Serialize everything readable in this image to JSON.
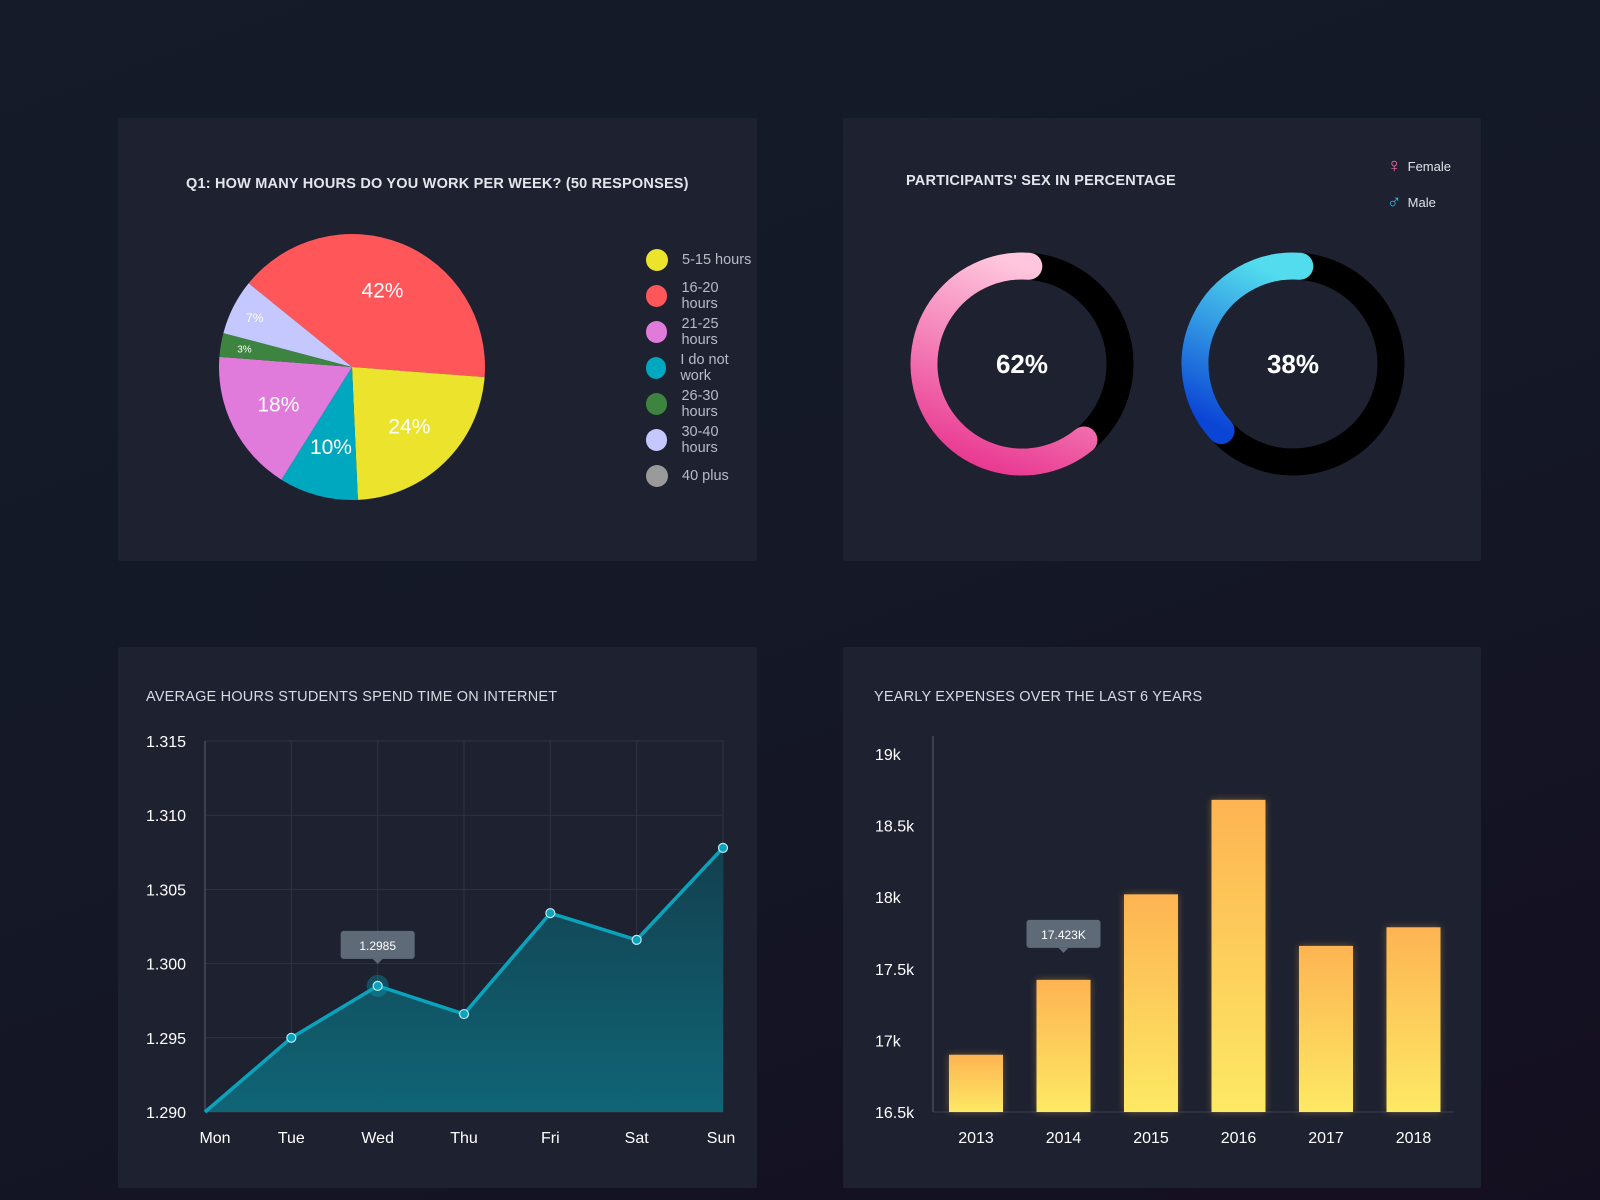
{
  "colors": {
    "panel": "#1d2130",
    "female_start": "#ffc6dd",
    "female_end": "#e93a92",
    "male_start": "#52dcee",
    "male_end": "#0b45d6",
    "line": "#0aa3bc",
    "bar_top": "#fdb452",
    "bar_bottom": "#fde964"
  },
  "chart_data": [
    {
      "type": "pie",
      "title": "Q1:  HOW MANY HOURS DO YOU WORK PER WEEK? (50 RESPONSES)",
      "slices": [
        {
          "label": "16-20 hours",
          "value": 42,
          "text": "42%",
          "color": "#ff565a"
        },
        {
          "label": "5-15 hours",
          "value": 24,
          "text": "24%",
          "color": "#ece42c"
        },
        {
          "label": "I do not work",
          "value": 10,
          "text": "10%",
          "color": "#00a8bf"
        },
        {
          "label": "21-25 hours",
          "value": 18,
          "text": "18%",
          "color": "#e07bdc"
        },
        {
          "label": "26-30 hours",
          "value": 3,
          "text": "3%",
          "color": "#3c8440"
        },
        {
          "label": "30-40 hours",
          "value": 7,
          "text": "7%",
          "color": "#c4c8ff"
        },
        {
          "label": "40 plus",
          "value": 0,
          "text": "",
          "color": "#9a9a9a"
        }
      ],
      "legend": [
        {
          "label": "5-15 hours",
          "color": "#ece42c"
        },
        {
          "label": "16-20 hours",
          "color": "#ff565a"
        },
        {
          "label": "21-25 hours",
          "color": "#e07bdc"
        },
        {
          "label": "I do not work",
          "color": "#00a8bf"
        },
        {
          "label": "26-30 hours",
          "color": "#3c8440"
        },
        {
          "label": "30-40 hours",
          "color": "#c4c8ff"
        },
        {
          "label": "40 plus",
          "color": "#9a9a9a"
        }
      ],
      "legend_position": "right"
    },
    {
      "type": "donut",
      "title": "PARTICIPANTS' SEX IN PERCENTAGE",
      "series": [
        {
          "name": "Female",
          "value": 62,
          "text": "62%",
          "icon": "female-icon"
        },
        {
          "name": "Male",
          "value": 38,
          "text": "38%",
          "icon": "male-icon"
        }
      ],
      "legend_position": "top-right"
    },
    {
      "type": "area",
      "title": "AVERAGE HOURS STUDENTS SPEND TIME ON INTERNET",
      "categories": [
        "Mon",
        "Tue",
        "Wed",
        "Thu",
        "Fri",
        "Sat",
        "Sun"
      ],
      "values": [
        1.29,
        1.295,
        1.2985,
        1.2966,
        1.3034,
        1.3016,
        1.3078
      ],
      "yticks": [
        "1.290",
        "1.295",
        "1.300",
        "1.305",
        "1.310",
        "1.315"
      ],
      "ylim": [
        1.29,
        1.315
      ],
      "grid": true,
      "tooltip": {
        "category": "Wed",
        "text": "1.2985"
      }
    },
    {
      "type": "bar",
      "title": "YEARLY EXPENSES OVER THE LAST 6 YEARS",
      "categories": [
        "2013",
        "2014",
        "2015",
        "2016",
        "2017",
        "2018"
      ],
      "values": [
        16.9,
        17.423,
        18.02,
        18.68,
        17.66,
        17.79
      ],
      "yticks": [
        "16.5k",
        "17k",
        "17.5k",
        "18k",
        "18.5k",
        "19k"
      ],
      "ylim": [
        16.5,
        19
      ],
      "grid": false,
      "tooltip": {
        "category": "2014",
        "text": "17.423K"
      }
    }
  ]
}
